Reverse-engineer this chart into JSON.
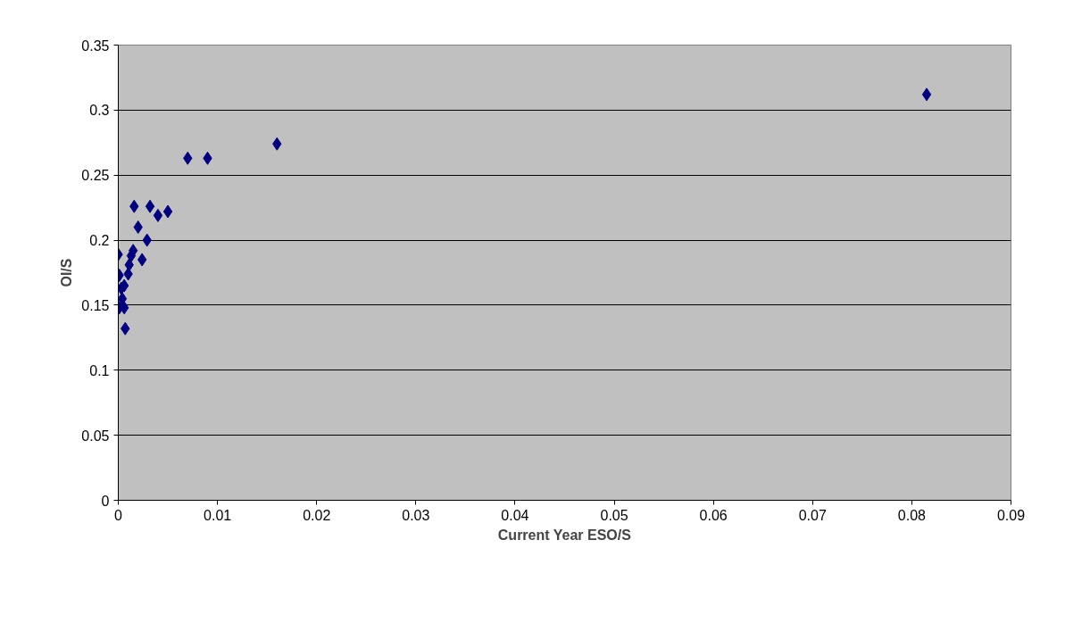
{
  "chart_data": {
    "type": "scatter",
    "xlabel": "Current Year ESO/S",
    "ylabel": "OI/S",
    "x": [
      0.0815,
      0.016,
      0.007,
      0.009,
      0.0016,
      0.0032,
      0.004,
      0.005,
      0.002,
      0.0029,
      0.0,
      0.0015,
      0.0013,
      0.0024,
      0.0011,
      0.001,
      0.0001,
      0.0006,
      0.0003,
      0.0004,
      0.0001,
      0.0006,
      0.0007
    ],
    "series": [
      {
        "color": "#000080",
        "values": [
          0.312,
          0.274,
          0.263,
          0.263,
          0.226,
          0.226,
          0.219,
          0.222,
          0.21,
          0.2,
          0.189,
          0.192,
          0.188,
          0.185,
          0.181,
          0.174,
          0.173,
          0.165,
          0.163,
          0.155,
          0.148,
          0.148,
          0.132
        ]
      }
    ],
    "xlim": [
      0,
      0.09
    ],
    "ylim": [
      0,
      0.35
    ],
    "xticks": [
      0,
      0.01,
      0.02,
      0.03,
      0.04,
      0.05,
      0.06,
      0.07,
      0.08,
      0.09
    ],
    "yticks": [
      0,
      0.05,
      0.1,
      0.15,
      0.2,
      0.25,
      0.3,
      0.35
    ],
    "grid": "y",
    "marker": "diamond"
  }
}
